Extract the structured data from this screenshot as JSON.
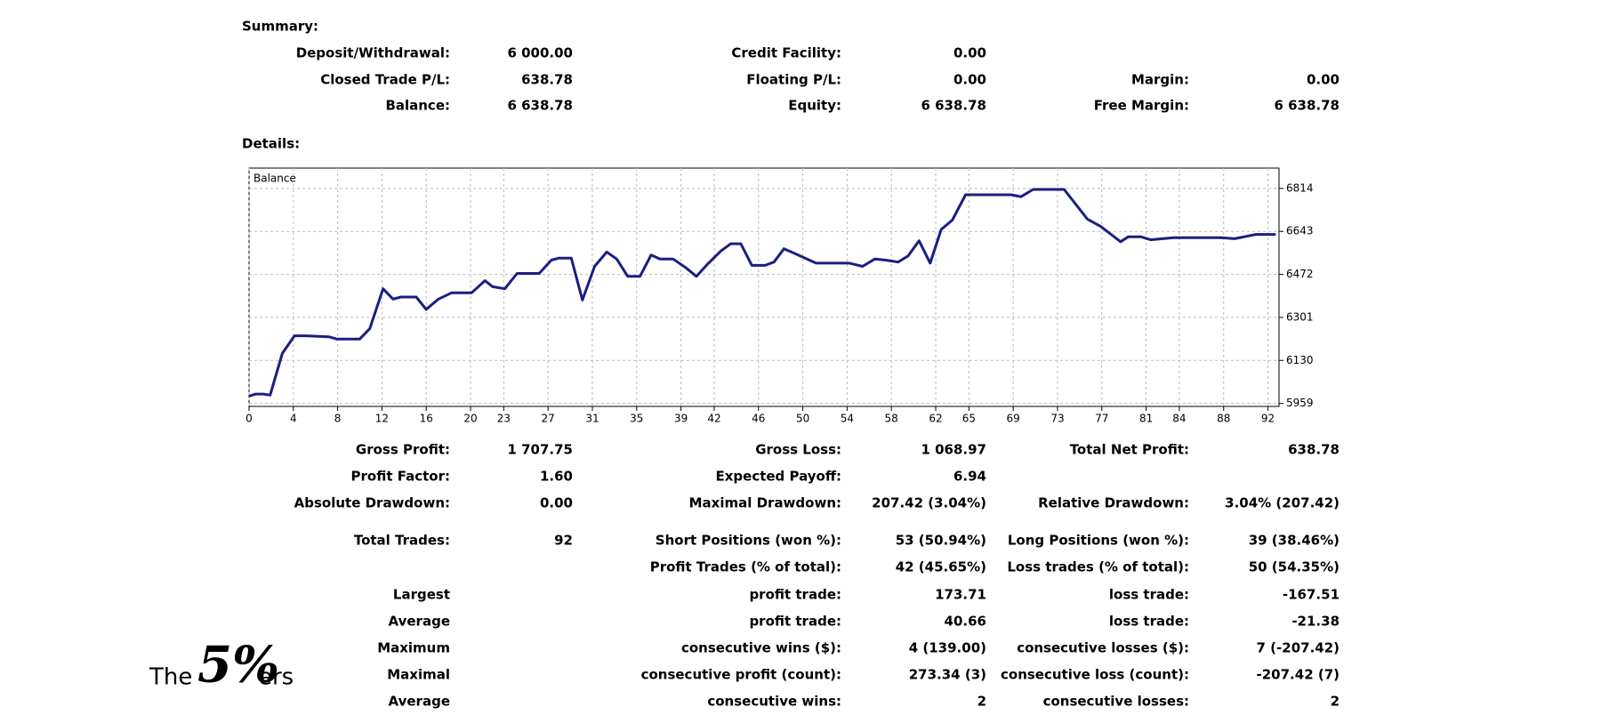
{
  "summary": {
    "title": "Summary:",
    "rows": [
      [
        "Deposit/Withdrawal:",
        "6 000.00",
        "Credit Facility:",
        "0.00",
        null,
        null
      ],
      [
        "Closed Trade P/L:",
        "638.78",
        "Floating P/L:",
        "0.00",
        "Margin:",
        "0.00"
      ],
      [
        "Balance:",
        "6 638.78",
        "Equity:",
        "6 638.78",
        "Free Margin:",
        "6 638.78"
      ]
    ]
  },
  "details": {
    "title": "Details:",
    "rows": [
      [
        "Gross Profit:",
        "1 707.75",
        "Gross Loss:",
        "1 068.97",
        "Total Net Profit:",
        "638.78"
      ],
      [
        "Profit Factor:",
        "1.60",
        "Expected Payoff:",
        "6.94",
        null,
        null
      ],
      [
        "Absolute Drawdown:",
        "0.00",
        "Maximal Drawdown:",
        "207.42 (3.04%)",
        "Relative Drawdown:",
        "3.04% (207.42)"
      ],
      [
        "Total Trades:",
        "92",
        "Short Positions (won %):",
        "53 (50.94%)",
        "Long Positions (won %):",
        "39 (38.46%)"
      ],
      [
        null,
        null,
        "Profit Trades (% of total):",
        "42 (45.65%)",
        "Loss trades (% of total):",
        "50 (54.35%)"
      ],
      [
        "Largest",
        null,
        "profit trade:",
        "173.71",
        "loss trade:",
        "-167.51"
      ],
      [
        "Average",
        null,
        "profit trade:",
        "40.66",
        "loss trade:",
        "-21.38"
      ],
      [
        "Maximum",
        null,
        "consecutive wins ($):",
        "4 (139.00)",
        "consecutive losses ($):",
        "7 (-207.42)"
      ],
      [
        "Maximal",
        null,
        "consecutive profit (count):",
        "273.34 (3)",
        "consecutive loss (count):",
        "-207.42 (7)"
      ],
      [
        "Average",
        null,
        "consecutive wins:",
        "2",
        "consecutive losses:",
        "2"
      ]
    ]
  },
  "logo": {
    "prefix": "The",
    "mark": "5%",
    "suffix": "ers"
  },
  "chart_data": {
    "type": "line",
    "grid": true,
    "x": [
      0,
      0.6,
      1.3,
      1.9,
      3,
      4.1,
      5.2,
      7.2,
      7.9,
      10,
      10.9,
      12.1,
      13,
      13.7,
      15.1,
      16,
      17.1,
      18.3,
      20.1,
      21.3,
      22,
      23.1,
      24.2,
      26.2,
      27.3,
      28,
      29.1,
      30.1,
      31.2,
      32.3,
      33.2,
      34.2,
      35.3,
      36.3,
      37.1,
      38.3,
      39.4,
      40.4,
      41.4,
      42.6,
      43.5,
      44.4,
      45.4,
      46.6,
      47.4,
      48.3,
      49.2,
      51.2,
      53.4,
      54.2,
      55.4,
      56.5,
      57.5,
      58.6,
      59.5,
      60.5,
      61.5,
      62.5,
      63.5,
      64.7,
      68.8,
      69.7,
      70.8,
      73.6,
      75.7,
      76.9,
      78.7,
      79.4,
      80.5,
      81.4,
      83.5,
      87.7,
      89,
      90.9,
      92.7
    ],
    "series": [
      {
        "name": "Balance",
        "color": "#1a1f80",
        "values": [
          5988,
          5996,
          5996,
          5992,
          6158,
          6228,
          6228,
          6224,
          6215,
          6215,
          6256,
          6415,
          6374,
          6382,
          6382,
          6333,
          6374,
          6399,
          6399,
          6447,
          6423,
          6415,
          6476,
          6476,
          6529,
          6537,
          6537,
          6370,
          6504,
          6561,
          6533,
          6464,
          6464,
          6549,
          6533,
          6533,
          6500,
          6464,
          6513,
          6565,
          6594,
          6594,
          6508,
          6508,
          6521,
          6574,
          6557,
          6517,
          6517,
          6517,
          6504,
          6533,
          6529,
          6521,
          6545,
          6606,
          6517,
          6651,
          6688,
          6789,
          6789,
          6781,
          6810,
          6810,
          6692,
          6663,
          6602,
          6622,
          6622,
          6610,
          6618,
          6618,
          6614,
          6631,
          6631
        ]
      }
    ],
    "xlim": [
      0,
      93
    ],
    "ylim": [
      5947,
      6895
    ],
    "xticks": [
      0,
      4,
      8,
      12,
      16,
      20,
      23,
      27,
      31,
      35,
      39,
      42,
      46,
      50,
      54,
      58,
      62,
      65,
      69,
      73,
      77,
      81,
      84,
      88,
      92
    ],
    "yticks": [
      5959,
      6130,
      6301,
      6472,
      6643,
      6814
    ]
  }
}
